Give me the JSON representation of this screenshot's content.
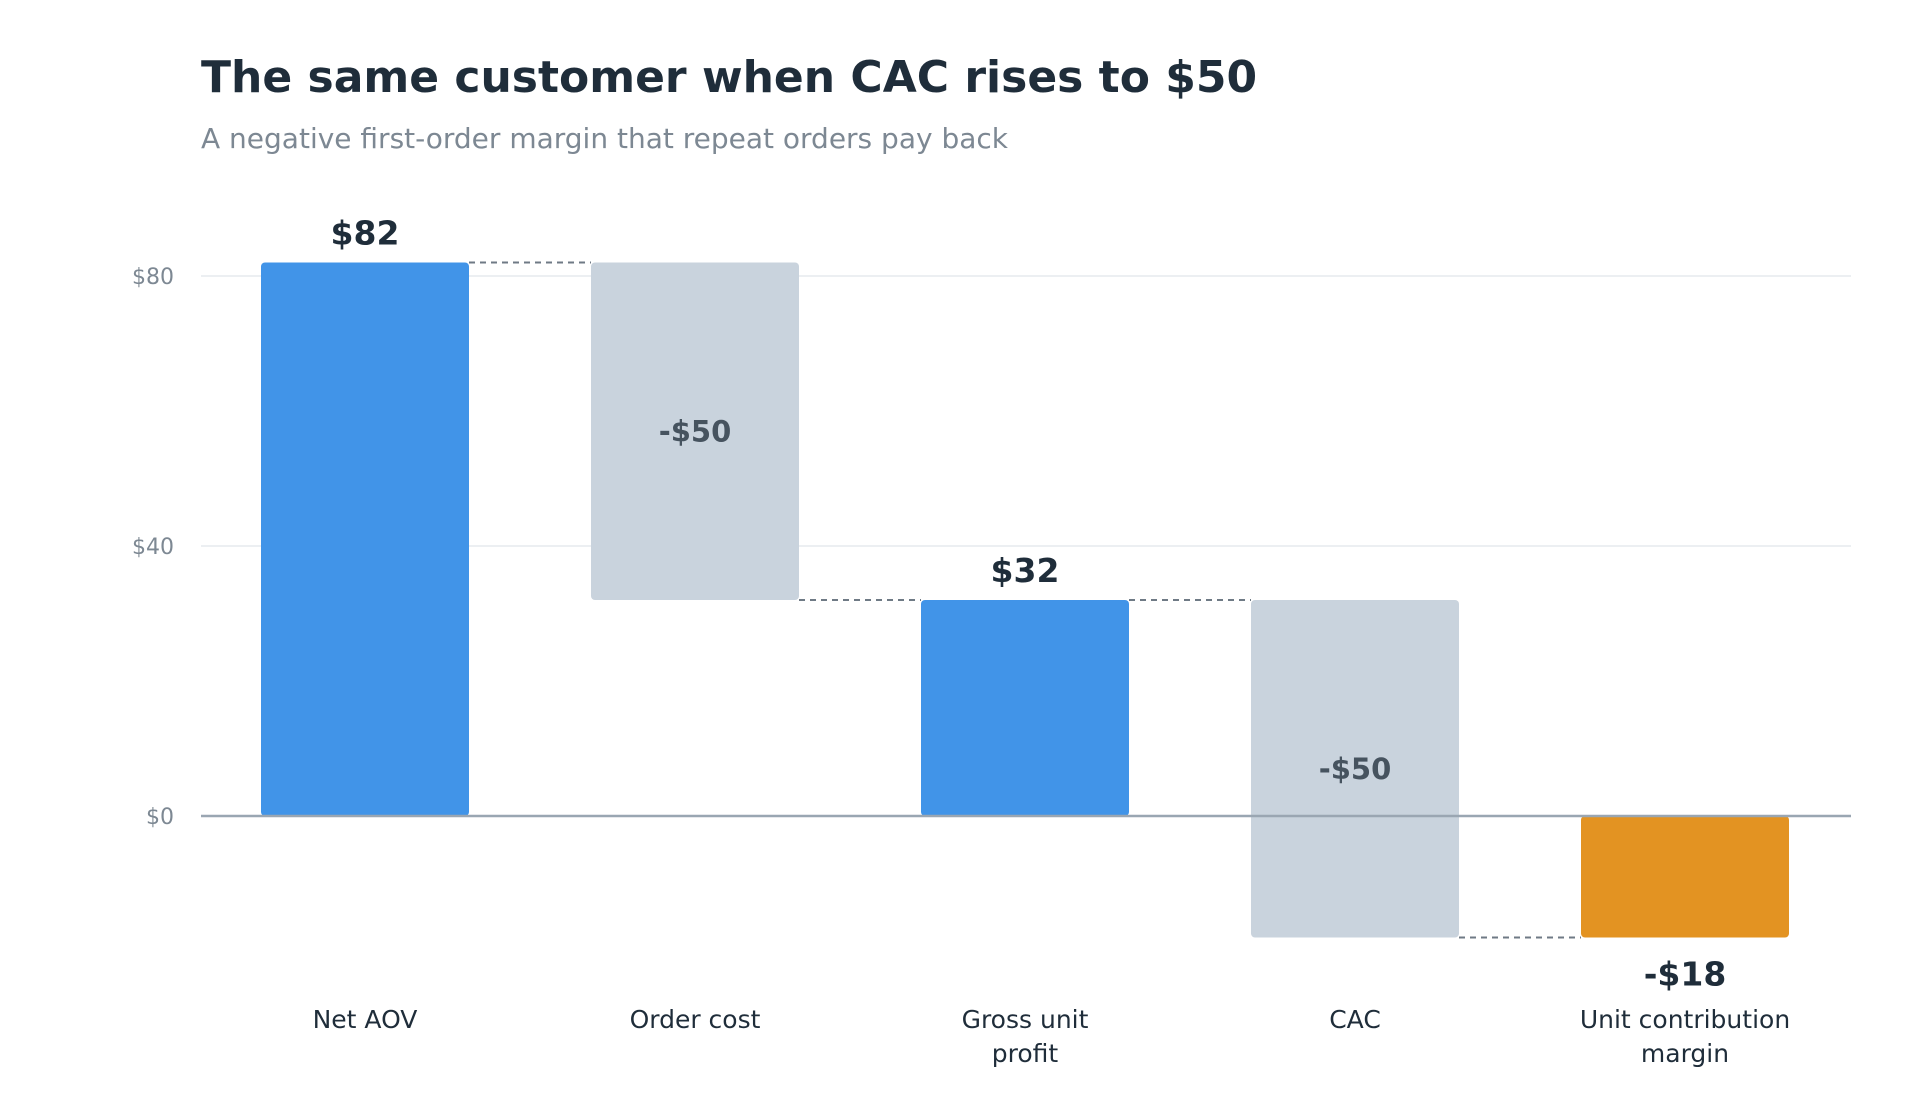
{
  "chart_data": {
    "type": "bar",
    "subtype": "waterfall",
    "title": "The same customer when CAC rises to $50",
    "subtitle": "A negative first-order margin that repeat orders pay back",
    "xlabel": "",
    "ylabel": "",
    "ylim": [
      -18,
      90
    ],
    "yticks": [
      {
        "value": 0,
        "label": "$0"
      },
      {
        "value": 40,
        "label": "$40"
      },
      {
        "value": 80,
        "label": "$80"
      }
    ],
    "grid": true,
    "legend": "none",
    "steps": [
      {
        "category_lines": [
          "Net AOV"
        ],
        "kind": "total",
        "start": 0,
        "end": 82,
        "label": "$82",
        "color": "#4194e8"
      },
      {
        "category_lines": [
          "Order cost"
        ],
        "kind": "delta",
        "start": 82,
        "end": 32,
        "label": "-$50",
        "color": "#c9d3dd"
      },
      {
        "category_lines": [
          "Gross unit",
          "profit"
        ],
        "kind": "total",
        "start": 0,
        "end": 32,
        "label": "$32",
        "color": "#4194e8"
      },
      {
        "category_lines": [
          "CAC"
        ],
        "kind": "delta",
        "start": 32,
        "end": -18,
        "label": "-$50",
        "color": "#c9d3dd"
      },
      {
        "category_lines": [
          "Unit contribution",
          "margin"
        ],
        "kind": "total",
        "start": 0,
        "end": -18,
        "label": "-$18",
        "color": "#e39322"
      }
    ],
    "colors": {
      "total": "#4194e8",
      "delta": "#c9d3dd",
      "negative_total": "#e39322",
      "total_label": "#1f2d3a",
      "delta_label": "#46535f",
      "grid": "#e6eaee",
      "baseline": "#9aa6b2",
      "tick_label": "#7d8893",
      "category_label": "#1f2d3a",
      "connector": "#6f7a85"
    }
  }
}
